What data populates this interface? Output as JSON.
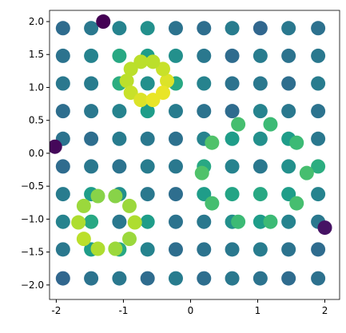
{
  "chart_data": {
    "type": "scatter",
    "colormap": "viridis",
    "x": [
      -1.9,
      -1.48,
      -1.06,
      -0.64,
      -0.22,
      0.2,
      0.62,
      1.04,
      1.46,
      1.9,
      -1.9,
      -1.48,
      -1.06,
      -0.64,
      -0.22,
      0.2,
      0.62,
      1.04,
      1.46,
      1.9,
      -1.9,
      -1.48,
      -1.06,
      -0.64,
      -0.22,
      0.2,
      0.62,
      1.04,
      1.46,
      1.9,
      -1.9,
      -1.48,
      -1.06,
      -0.64,
      -0.22,
      0.2,
      0.62,
      1.04,
      1.46,
      1.9,
      -1.9,
      -1.48,
      -1.06,
      -0.64,
      -0.22,
      0.2,
      0.62,
      1.04,
      1.46,
      1.9,
      -1.9,
      -1.48,
      -1.06,
      -0.64,
      -0.22,
      0.2,
      0.62,
      1.04,
      1.46,
      1.9,
      -1.9,
      -1.48,
      -1.06,
      -0.64,
      -0.22,
      0.2,
      0.62,
      1.04,
      1.46,
      1.9,
      -1.9,
      -1.48,
      -1.06,
      -0.64,
      -0.22,
      0.2,
      0.62,
      1.04,
      1.46,
      1.9,
      -1.9,
      -1.48,
      -1.06,
      -0.64,
      -0.22,
      0.2,
      0.62,
      1.04,
      1.46,
      1.9,
      -1.9,
      -1.48,
      -1.06,
      -0.64,
      -0.22,
      0.2,
      0.62,
      1.04,
      1.46,
      1.9,
      -0.35,
      -0.41,
      -0.56,
      -0.74,
      -0.89,
      -0.95,
      -0.89,
      -0.74,
      -0.56,
      -0.41,
      -0.83,
      -0.91,
      -1.12,
      -1.38,
      -1.59,
      -1.67,
      -1.59,
      -1.38,
      -1.12,
      -0.91,
      1.73,
      1.58,
      1.19,
      0.71,
      0.32,
      0.17,
      0.32,
      0.71,
      1.19,
      1.58,
      -1.3,
      -2.02,
      2.0
    ],
    "y": [
      1.9,
      1.9,
      1.9,
      1.9,
      1.9,
      1.9,
      1.9,
      1.9,
      1.9,
      1.9,
      1.48,
      1.48,
      1.48,
      1.48,
      1.48,
      1.48,
      1.48,
      1.48,
      1.48,
      1.48,
      1.06,
      1.06,
      1.06,
      1.06,
      1.06,
      1.06,
      1.06,
      1.06,
      1.06,
      1.06,
      0.64,
      0.64,
      0.64,
      0.64,
      0.64,
      0.64,
      0.64,
      0.64,
      0.64,
      0.64,
      0.22,
      0.22,
      0.22,
      0.22,
      0.22,
      0.22,
      0.22,
      0.22,
      0.22,
      0.22,
      -0.2,
      -0.2,
      -0.2,
      -0.2,
      -0.2,
      -0.2,
      -0.2,
      -0.2,
      -0.2,
      -0.2,
      -0.62,
      -0.62,
      -0.62,
      -0.62,
      -0.62,
      -0.62,
      -0.62,
      -0.62,
      -0.62,
      -0.62,
      -1.04,
      -1.04,
      -1.04,
      -1.04,
      -1.04,
      -1.04,
      -1.04,
      -1.04,
      -1.04,
      -1.04,
      -1.46,
      -1.46,
      -1.46,
      -1.46,
      -1.46,
      -1.46,
      -1.46,
      -1.46,
      -1.46,
      -1.46,
      -1.9,
      -1.9,
      -1.9,
      -1.9,
      -1.9,
      -1.9,
      -1.9,
      -1.9,
      -1.9,
      -1.9,
      1.1,
      1.28,
      1.39,
      1.39,
      1.28,
      1.1,
      0.92,
      0.81,
      0.81,
      0.92,
      -1.05,
      -0.8,
      -0.65,
      -0.65,
      -0.8,
      -1.05,
      -1.3,
      -1.45,
      -1.45,
      -1.3,
      -0.3,
      0.16,
      0.44,
      0.44,
      0.16,
      -0.3,
      -0.76,
      -1.04,
      -1.04,
      -0.76,
      2.0,
      0.1,
      -1.13
    ],
    "c": [
      0.35,
      0.4,
      0.45,
      0.5,
      0.38,
      0.36,
      0.42,
      0.33,
      0.4,
      0.37,
      0.38,
      0.45,
      0.6,
      0.55,
      0.5,
      0.4,
      0.35,
      0.42,
      0.38,
      0.4,
      0.4,
      0.42,
      0.62,
      0.5,
      0.6,
      0.45,
      0.38,
      0.4,
      0.36,
      0.42,
      0.36,
      0.4,
      0.45,
      0.55,
      0.42,
      0.38,
      0.35,
      0.45,
      0.4,
      0.38,
      0.38,
      0.36,
      0.42,
      0.4,
      0.37,
      0.45,
      0.55,
      0.5,
      0.55,
      0.4,
      0.35,
      0.4,
      0.38,
      0.42,
      0.4,
      0.6,
      0.45,
      0.4,
      0.5,
      0.62,
      0.42,
      0.55,
      0.5,
      0.4,
      0.36,
      0.55,
      0.58,
      0.6,
      0.55,
      0.45,
      0.45,
      0.6,
      0.4,
      0.55,
      0.38,
      0.4,
      0.5,
      0.55,
      0.45,
      0.4,
      0.4,
      0.55,
      0.6,
      0.45,
      0.36,
      0.38,
      0.4,
      0.42,
      0.38,
      0.35,
      0.33,
      0.38,
      0.4,
      0.35,
      0.42,
      0.36,
      0.4,
      0.38,
      0.35,
      0.37,
      0.95,
      0.92,
      0.9,
      0.9,
      0.9,
      0.9,
      0.92,
      0.95,
      0.97,
      0.97,
      0.88,
      0.85,
      0.82,
      0.82,
      0.85,
      0.88,
      0.9,
      0.88,
      0.85,
      0.85,
      0.7,
      0.68,
      0.68,
      0.7,
      0.72,
      0.72,
      0.7,
      0.68,
      0.68,
      0.7,
      0.0,
      0.02,
      0.05
    ],
    "xlim": [
      -2.1,
      2.22
    ],
    "ylim": [
      -2.22,
      2.17
    ],
    "xticks": [
      -2,
      -1,
      0,
      1,
      2
    ],
    "yticks": [
      {
        "value": -2,
        "label": "−2.0"
      },
      {
        "value": -1.5,
        "label": "−1.5"
      },
      {
        "value": -1,
        "label": "−1.0"
      },
      {
        "value": -0.5,
        "label": "−0.5"
      },
      {
        "value": 0,
        "label": "0.0"
      },
      {
        "value": 0.5,
        "label": "0.5"
      },
      {
        "value": 1,
        "label": "1.0"
      },
      {
        "value": 1.5,
        "label": "1.5"
      },
      {
        "value": 2,
        "label": "2.0"
      }
    ]
  }
}
